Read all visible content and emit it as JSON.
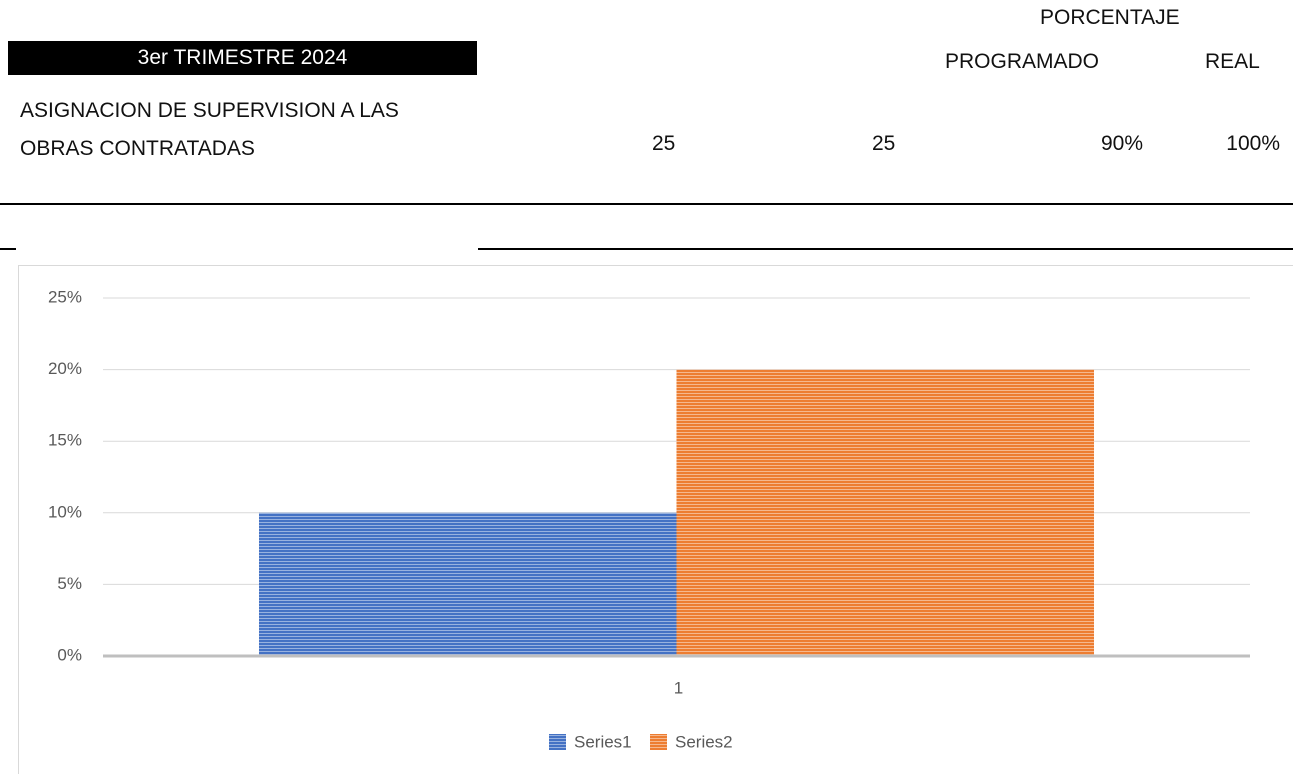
{
  "header": {
    "period": "3er TRIMESTRE 2024",
    "percent_heading": "PORCENTAJE",
    "columns": [
      "PROGRAMADO",
      "REAL"
    ]
  },
  "table": {
    "rows": [
      [
        "ASIGNACION DE SUPERVISION A LAS OBRAS CONTRATADAS",
        "25",
        "25",
        "90%",
        "100%"
      ]
    ]
  },
  "chart_data": {
    "type": "bar",
    "categories": [
      "1"
    ],
    "series": [
      {
        "name": "Series1",
        "color": "#4472c4",
        "values": [
          10
        ]
      },
      {
        "name": "Series2",
        "color": "#ed7d31",
        "values": [
          20
        ]
      }
    ],
    "ylim": [
      0,
      25
    ],
    "yticks": [
      {
        "value": 0,
        "label": "0%"
      },
      {
        "value": 5,
        "label": "5%"
      },
      {
        "value": 10,
        "label": "10%"
      },
      {
        "value": 15,
        "label": "15%"
      },
      {
        "value": 20,
        "label": "20%"
      },
      {
        "value": 25,
        "label": "25%"
      }
    ],
    "grid": true,
    "legend": "bottom"
  }
}
